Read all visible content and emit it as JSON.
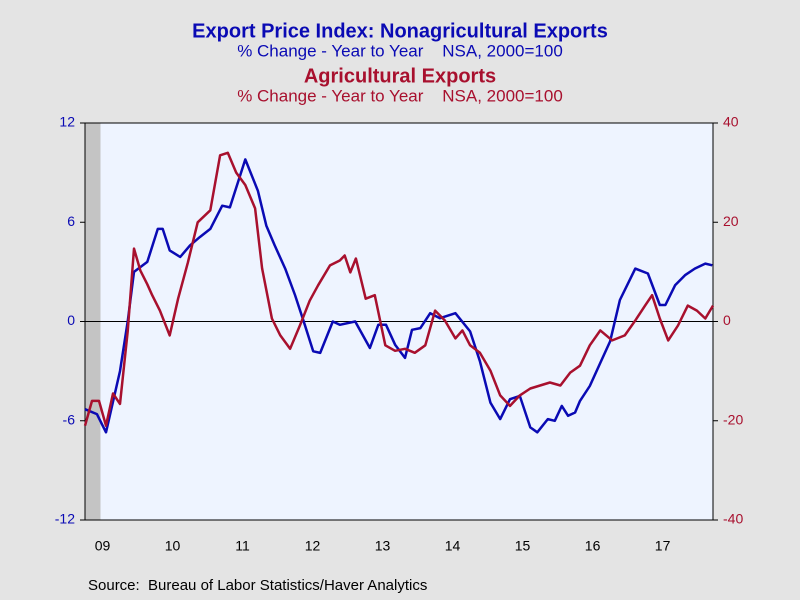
{
  "chart_data": {
    "type": "line",
    "title": "Export Price Index: Nonagricultural Exports",
    "subtitle": "% Change - Year to Year    NSA, 2000=100",
    "title2": "Agricultural Exports",
    "subtitle2": "% Change - Year to Year    NSA, 2000=100",
    "source": "Source:  Bureau of Labor Statistics/Haver Analytics",
    "xlim": [
      2009.25,
      2018.22
    ],
    "xticks": [
      {
        "value": 2009.5,
        "label": "09"
      },
      {
        "value": 2010.5,
        "label": "10"
      },
      {
        "value": 2011.5,
        "label": "11"
      },
      {
        "value": 2012.5,
        "label": "12"
      },
      {
        "value": 2013.5,
        "label": "13"
      },
      {
        "value": 2014.5,
        "label": "14"
      },
      {
        "value": 2015.5,
        "label": "15"
      },
      {
        "value": 2016.5,
        "label": "16"
      },
      {
        "value": 2017.5,
        "label": "17"
      }
    ],
    "ylim": [
      -12,
      12
    ],
    "yticks": [
      -12,
      -6,
      0,
      6,
      12
    ],
    "y2lim": [
      -40,
      40
    ],
    "y2ticks": [
      -40,
      -20,
      0,
      20,
      40
    ],
    "series": [
      {
        "name": "Export Price Index: Nonagricultural Exports",
        "color": "#0a0ab4",
        "x": [
          2009.25,
          2009.42,
          2009.55,
          2009.75,
          2009.86,
          2009.95,
          2010.14,
          2010.29,
          2010.36,
          2010.46,
          2010.61,
          2010.75,
          2010.89,
          2011.04,
          2011.21,
          2011.32,
          2011.54,
          2011.72,
          2011.84,
          2011.96,
          2012.11,
          2012.25,
          2012.39,
          2012.51,
          2012.61,
          2012.79,
          2012.89,
          2013.11,
          2013.32,
          2013.44,
          2013.55,
          2013.68,
          2013.82,
          2013.92,
          2014.04,
          2014.18,
          2014.32,
          2014.54,
          2014.75,
          2014.89,
          2015.04,
          2015.18,
          2015.32,
          2015.46,
          2015.61,
          2015.71,
          2015.86,
          2015.96,
          2016.06,
          2016.15,
          2016.25,
          2016.32,
          2016.46,
          2016.61,
          2016.75,
          2016.89,
          2017.11,
          2017.29,
          2017.46,
          2017.54,
          2017.68,
          2017.82,
          2017.96,
          2018.11,
          2018.21
        ],
        "values": [
          -5.3,
          -5.6,
          -6.7,
          -3,
          0,
          3,
          3.6,
          5.6,
          5.6,
          4.3,
          3.9,
          4.6,
          5.1,
          5.6,
          7,
          6.9,
          9.8,
          7.9,
          5.8,
          4.6,
          3.2,
          1.6,
          -0.2,
          -1.8,
          -1.9,
          0,
          -0.2,
          0,
          -1.6,
          -0.2,
          -0.2,
          -1.4,
          -2.2,
          -0.5,
          -0.4,
          0.5,
          0.2,
          0.5,
          -0.6,
          -2.4,
          -4.9,
          -5.9,
          -4.7,
          -4.5,
          -6.4,
          -6.7,
          -5.9,
          -6,
          -5.1,
          -5.7,
          -5.5,
          -4.8,
          -3.9,
          -2.5,
          -1.2,
          1.3,
          3.2,
          2.9,
          1,
          1,
          2.2,
          2.8,
          3.2,
          3.5,
          3.4
        ]
      },
      {
        "name": "Agricultural Exports",
        "color": "#a8102e",
        "axis": "y2",
        "x": [
          2009.25,
          2009.35,
          2009.45,
          2009.55,
          2009.65,
          2009.75,
          2009.86,
          2009.95,
          2010.04,
          2010.14,
          2010.21,
          2010.32,
          2010.46,
          2010.58,
          2010.72,
          2010.86,
          2011.04,
          2011.18,
          2011.29,
          2011.41,
          2011.54,
          2011.68,
          2011.78,
          2011.92,
          2012.04,
          2012.18,
          2012.32,
          2012.46,
          2012.58,
          2012.75,
          2012.89,
          2012.96,
          2013.04,
          2013.12,
          2013.26,
          2013.39,
          2013.54,
          2013.68,
          2013.82,
          2013.96,
          2014.11,
          2014.25,
          2014.39,
          2014.54,
          2014.64,
          2014.75,
          2014.89,
          2015.04,
          2015.18,
          2015.32,
          2015.46,
          2015.61,
          2015.75,
          2015.89,
          2016.04,
          2016.18,
          2016.32,
          2016.46,
          2016.61,
          2016.78,
          2016.96,
          2017.11,
          2017.25,
          2017.35,
          2017.46,
          2017.58,
          2017.72,
          2017.86,
          2017.99,
          2018.11,
          2018.22
        ],
        "values": [
          -21,
          -16,
          -16,
          -21,
          -14.5,
          -16.6,
          -2,
          14.7,
          10.3,
          7.5,
          5.3,
          2.2,
          -2.8,
          4.6,
          11.9,
          20,
          22.4,
          33.5,
          34,
          30,
          27.5,
          22.8,
          10.7,
          0.6,
          -2.8,
          -5.5,
          -0.8,
          4.2,
          7.3,
          11.3,
          12.3,
          13.3,
          9.9,
          12.7,
          4.6,
          5.3,
          -4.8,
          -5.9,
          -5.5,
          -6.3,
          -4.8,
          2.2,
          0.2,
          -3.4,
          -1.8,
          -4.8,
          -6.3,
          -9.9,
          -14.9,
          -17,
          -14.9,
          -13.5,
          -12.9,
          -12.3,
          -12.9,
          -10.3,
          -8.9,
          -4.8,
          -1.8,
          -3.8,
          -2.8,
          0.2,
          3.2,
          5.3,
          0.6,
          -3.8,
          -0.8,
          3.2,
          2.2,
          0.6,
          3.2
        ]
      }
    ]
  }
}
